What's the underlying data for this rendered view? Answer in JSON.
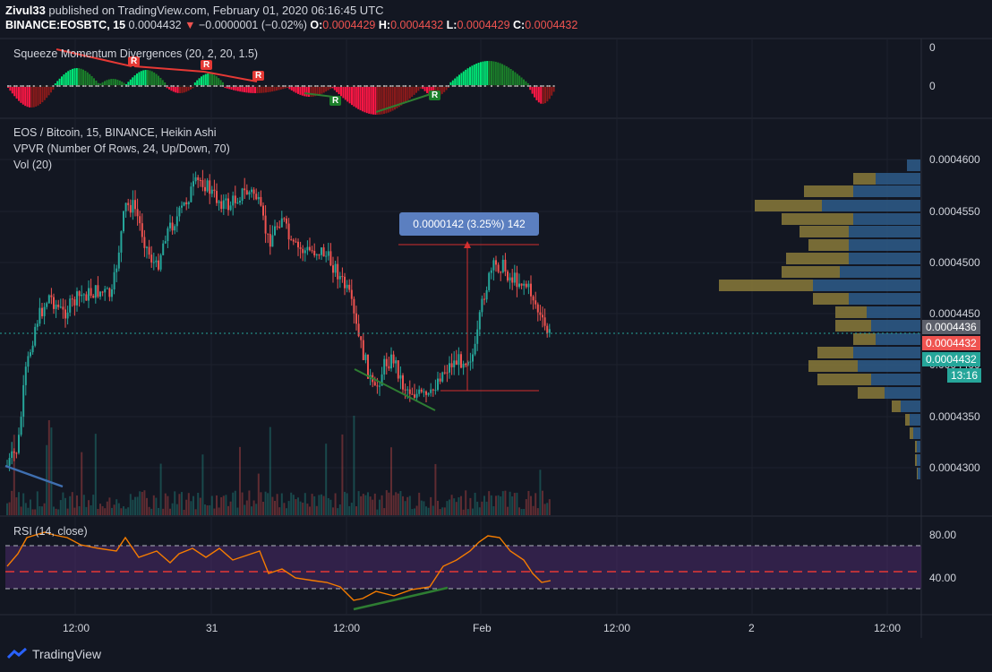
{
  "header": {
    "author": "Zivul33",
    "published_text": "published on TradingView.com, February 01, 2020 06:16:45 UTC",
    "symbol": "BINANCE:EOSBTC, 15",
    "last": "0.0004432",
    "change_arrow": "▼",
    "change": "−0.0000001 (−0.02%)",
    "o_label": "O:",
    "o_value": "0.0004429",
    "h_label": "H:",
    "h_value": "0.0004432",
    "l_label": "L:",
    "l_value": "0.0004429",
    "c_label": "C:",
    "c_value": "0.0004432"
  },
  "squeeze_pane": {
    "title": "Squeeze Momentum Divergences (20, 2, 20, 1.5)",
    "axis_top": "0",
    "axis_mid": "0",
    "markers": [
      "R",
      "R",
      "R",
      "R",
      "R"
    ]
  },
  "main_pane": {
    "title": "EOS / Bitcoin, 15, BINANCE, Heikin Ashi",
    "indicator1": "VPVR (Number Of Rows, 24, Up/Down, 70)",
    "indicator2": "Vol (20)",
    "measure_label": "0.0000142 (3.25%) 142",
    "price_ticks": [
      "0.0004600",
      "0.0004550",
      "0.0004500",
      "0.0004450",
      "0.0004400",
      "0.0004350",
      "0.0004300"
    ],
    "tag_gray": "0.0004436",
    "tag_red": "0.0004432",
    "tag_green": "0.0004432",
    "tag_time": "13:16"
  },
  "rsi_pane": {
    "title": "RSI (14, close)",
    "ticks": [
      "80.00",
      "40.00"
    ]
  },
  "time_axis": [
    "12:00",
    "31",
    "12:00",
    "Feb",
    "12:00",
    "2",
    "12:00"
  ],
  "footer": {
    "brand": "TradingView"
  },
  "colors": {
    "background": "#131722",
    "up": "#26a69a",
    "down": "#ef5350",
    "grid": "#2a2e39",
    "rsi_line": "#f57c00",
    "rsi_band": "#4a2a6a"
  }
}
